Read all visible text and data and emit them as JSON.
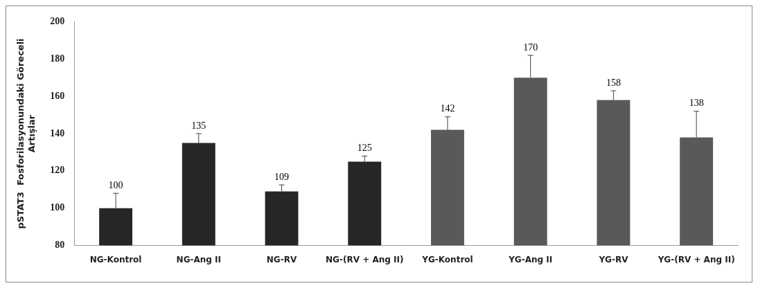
{
  "chart_data": {
    "type": "bar",
    "ylabel": "pSTAT3  Fosforilasyonundaki Göreceli\nArtışlar",
    "categories": [
      "NG-Kontrol",
      "NG-Ang II",
      "NG-RV",
      "NG-(RV + Ang II)",
      "YG-Kontrol",
      "YG-Ang II",
      "YG-RV",
      "YG-(RV + Ang II)"
    ],
    "values": [
      100,
      135,
      109,
      125,
      142,
      170,
      158,
      138
    ],
    "colors": [
      "#262626",
      "#262626",
      "#262626",
      "#262626",
      "#595959",
      "#595959",
      "#595959",
      "#595959"
    ],
    "errors": [
      [
        100,
        108
      ],
      [
        135,
        140
      ],
      [
        109,
        112.5
      ],
      [
        125,
        128
      ],
      [
        142,
        149
      ],
      [
        170,
        182
      ],
      [
        158,
        163
      ],
      [
        138,
        152
      ]
    ],
    "data_labels": true,
    "ylim": [
      80,
      200
    ],
    "yticks": [
      80,
      100,
      120,
      140,
      160,
      180,
      200
    ],
    "grid": false,
    "legend": false
  }
}
